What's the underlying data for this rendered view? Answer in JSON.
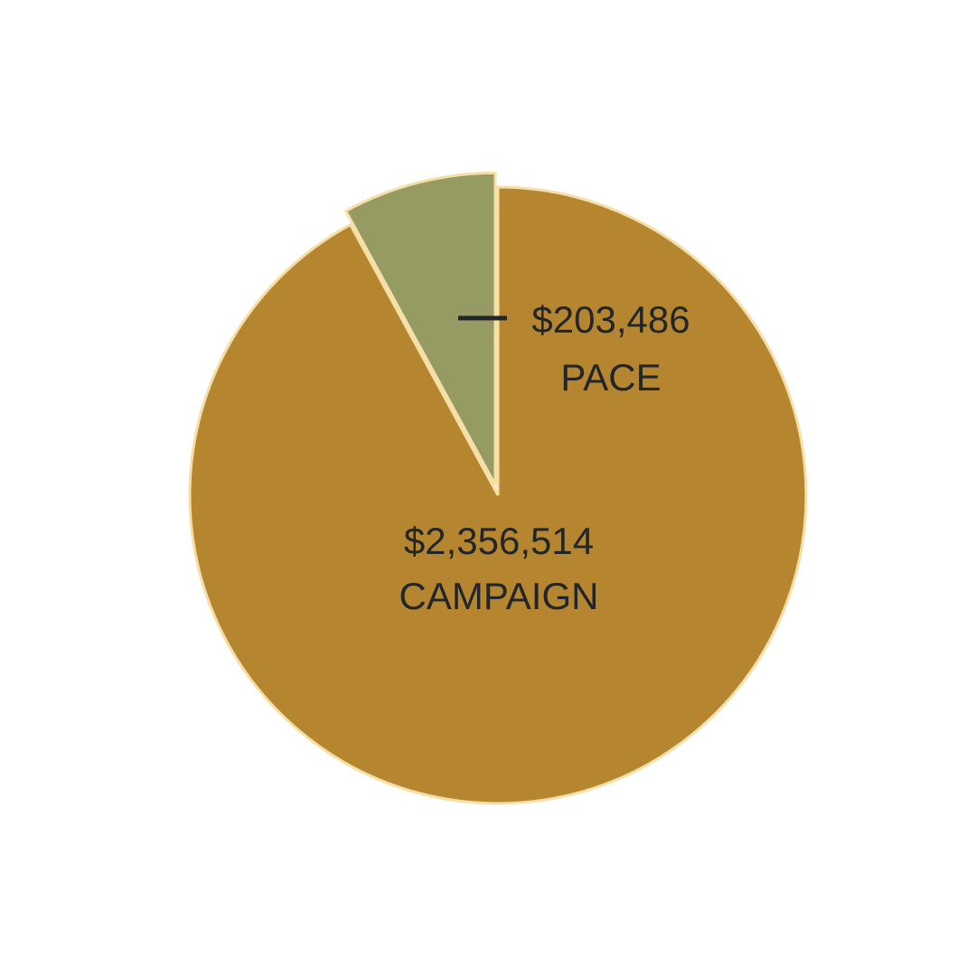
{
  "chart_data": {
    "type": "pie",
    "categories": [
      "PACE",
      "CAMPAIGN"
    ],
    "values": [
      203486,
      2356514
    ],
    "value_labels": [
      "$203,486",
      "$2,356,514"
    ],
    "colors": [
      "#959b63",
      "#b5862f"
    ]
  }
}
